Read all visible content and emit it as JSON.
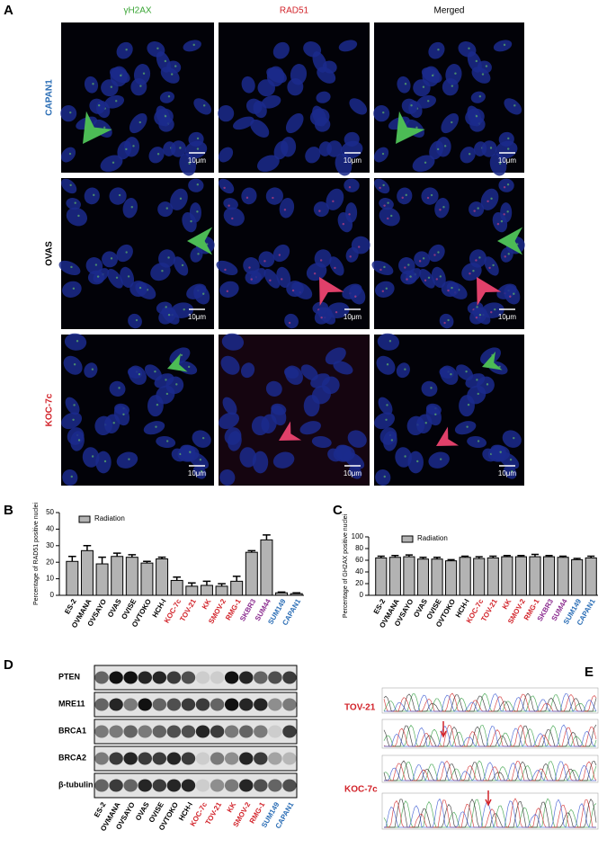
{
  "panel_letters": [
    "A",
    "B",
    "C",
    "D",
    "E"
  ],
  "panel_a": {
    "columns": [
      "γH2AX",
      "RAD51",
      "Merged"
    ],
    "column_colors": [
      "#3aa535",
      "#d2232a",
      "#000000"
    ],
    "rows": [
      "CAPAN1",
      "OVAS",
      "KOC-7c"
    ],
    "row_colors": [
      "#2a6db5",
      "#000000",
      "#d2232a"
    ],
    "scale_bar": "10μm"
  },
  "chart_data": [
    {
      "type": "bar",
      "ylabel": "Percentage of RAD51 positive nuclei",
      "categories": [
        "ES-2",
        "OVMANA",
        "OVSAYO",
        "OVAS",
        "OVISE",
        "OVTOKO",
        "HCH-I",
        "KOC-7c",
        "TOV-21",
        "KK",
        "SMOV-2",
        "RMG-1",
        "SKBR3",
        "SUM44",
        "SUM149",
        "CAPAN1"
      ],
      "category_colors": [
        "#000000",
        "#000000",
        "#000000",
        "#000000",
        "#000000",
        "#000000",
        "#000000",
        "#d2232a",
        "#d2232a",
        "#d2232a",
        "#d2232a",
        "#d2232a",
        "#8b2c8f",
        "#8b2c8f",
        "#2a6db5",
        "#2a6db5"
      ],
      "series": [
        {
          "name": "Radiation",
          "color": "#b3b3b3",
          "values": [
            20.5,
            27,
            19,
            23.5,
            23,
            19.5,
            22,
            9,
            5.5,
            6,
            5.5,
            8.5,
            26,
            33.5,
            1.5,
            1
          ],
          "errors": [
            3,
            3,
            4,
            2,
            1.5,
            1,
            1,
            2,
            2,
            2.5,
            1.5,
            3,
            1,
            3,
            0.5,
            0.5
          ]
        }
      ],
      "ylim": [
        0,
        50
      ],
      "yticks": [
        0,
        10,
        20,
        30,
        40,
        50
      ]
    },
    {
      "type": "bar",
      "ylabel": "Percentage of GH2AX positive nuclei",
      "categories": [
        "ES-2",
        "OVMANA",
        "OVSAYO",
        "OVAS",
        "OVISE",
        "OVTOKO",
        "HCH-I",
        "KOC-7c",
        "TOV-21",
        "KK",
        "SMOV-2",
        "RMG-1",
        "SKBR3",
        "SUM44",
        "SUM149",
        "CAPAN1"
      ],
      "category_colors": [
        "#000000",
        "#000000",
        "#000000",
        "#000000",
        "#000000",
        "#000000",
        "#000000",
        "#d2232a",
        "#d2232a",
        "#d2232a",
        "#d2232a",
        "#d2232a",
        "#8b2c8f",
        "#8b2c8f",
        "#2a6db5",
        "#2a6db5"
      ],
      "series": [
        {
          "name": "Radiation",
          "color": "#b3b3b3",
          "values": [
            64,
            65,
            66,
            62,
            62,
            59,
            65,
            63,
            64,
            66,
            66,
            66,
            66,
            65,
            61,
            64
          ],
          "errors": [
            3,
            3,
            3,
            3,
            3,
            2,
            2,
            3,
            3,
            2,
            2,
            4,
            2,
            2,
            2,
            3
          ]
        }
      ],
      "ylim": [
        0,
        100
      ],
      "yticks": [
        0,
        20,
        40,
        60,
        80,
        100
      ]
    }
  ],
  "panel_d": {
    "proteins": [
      "PTEN",
      "MRE11",
      "BRCA1",
      "BRCA2",
      "β-tubulin"
    ],
    "lanes": [
      "ES-2",
      "OVMANA",
      "OVSAYO",
      "OVAS",
      "OVISE",
      "OVTOKO",
      "HCH-I",
      "KOC-7c",
      "TOV-21",
      "KK",
      "SMOV-2",
      "RMG-1",
      "SUM149",
      "CAPAN1"
    ],
    "lane_colors": [
      "#000000",
      "#000000",
      "#000000",
      "#000000",
      "#000000",
      "#000000",
      "#000000",
      "#d2232a",
      "#d2232a",
      "#d2232a",
      "#d2232a",
      "#d2232a",
      "#2a6db5",
      "#2a6db5"
    ]
  },
  "panel_e": {
    "samples": [
      "TOV-21",
      "KOC-7c"
    ],
    "label_color": "#d2232a"
  }
}
